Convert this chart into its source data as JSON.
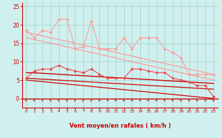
{
  "title": "",
  "xlabel": "Vent moyen/en rafales ( km/h )",
  "bg_color": "#cff0ee",
  "grid_color": "#aad8d4",
  "x": [
    0,
    1,
    2,
    3,
    4,
    5,
    6,
    7,
    8,
    9,
    10,
    11,
    12,
    13,
    14,
    15,
    16,
    17,
    18,
    19,
    20,
    21,
    22,
    23
  ],
  "light_pink_jagged": [
    18.5,
    16.5,
    18.5,
    18.0,
    21.5,
    21.5,
    13.5,
    14.0,
    21.0,
    13.5,
    13.5,
    13.5,
    16.5,
    13.5,
    16.5,
    16.5,
    16.5,
    13.5,
    12.5,
    11.0,
    6.5,
    6.5,
    6.5,
    6.5
  ],
  "light_pink_line1": [
    18.0,
    17.5,
    17.0,
    16.5,
    16.0,
    15.5,
    15.0,
    14.5,
    14.0,
    13.5,
    13.0,
    12.5,
    12.0,
    11.5,
    11.0,
    10.5,
    10.0,
    9.5,
    9.0,
    8.5,
    8.0,
    7.5,
    7.0,
    6.5
  ],
  "light_pink_line2": [
    16.5,
    16.0,
    15.5,
    15.0,
    14.5,
    14.0,
    13.5,
    13.0,
    12.5,
    12.0,
    11.5,
    11.0,
    10.5,
    10.0,
    9.5,
    9.0,
    8.5,
    8.0,
    7.5,
    7.0,
    6.5,
    6.0,
    5.5,
    5.0
  ],
  "red_jagged": [
    5.5,
    7.5,
    8.0,
    8.0,
    9.0,
    8.0,
    7.5,
    7.0,
    8.0,
    6.5,
    5.5,
    5.5,
    5.5,
    8.0,
    8.0,
    7.5,
    7.0,
    7.0,
    5.5,
    5.0,
    4.5,
    3.5,
    3.5,
    0.5
  ],
  "dark_red_line1": [
    7.0,
    6.96,
    6.83,
    6.7,
    6.57,
    6.43,
    6.3,
    6.17,
    6.04,
    5.91,
    5.78,
    5.65,
    5.52,
    5.39,
    5.26,
    5.13,
    5.0,
    4.87,
    4.74,
    4.61,
    4.48,
    4.35,
    4.22,
    4.09
  ],
  "dark_red_line2": [
    5.5,
    5.37,
    5.24,
    5.11,
    4.98,
    4.85,
    4.72,
    4.59,
    4.46,
    4.33,
    4.2,
    4.07,
    3.94,
    3.81,
    3.68,
    3.55,
    3.42,
    3.29,
    3.16,
    3.03,
    2.9,
    2.77,
    2.64,
    2.51
  ],
  "dark_red_line3": [
    5.0,
    4.78,
    4.57,
    4.35,
    4.13,
    3.91,
    3.7,
    3.48,
    3.26,
    3.04,
    2.83,
    2.61,
    2.39,
    2.17,
    1.96,
    1.74,
    1.52,
    1.3,
    1.09,
    0.87,
    0.65,
    0.43,
    0.22,
    0.0
  ],
  "ylim": [
    -2.5,
    26
  ],
  "xlim": [
    -0.5,
    23.5
  ],
  "yticks": [
    0,
    5,
    10,
    15,
    20,
    25
  ],
  "xticks": [
    0,
    1,
    2,
    3,
    4,
    5,
    6,
    7,
    8,
    9,
    10,
    11,
    12,
    13,
    14,
    15,
    16,
    17,
    18,
    19,
    20,
    21,
    22,
    23
  ],
  "light_pink": "#ff9999",
  "dark_red": "#cc0000",
  "medium_red": "#ee4444",
  "arrow_color": "#cc2222",
  "xlabel_color": "#cc0000",
  "tick_color": "#cc0000"
}
